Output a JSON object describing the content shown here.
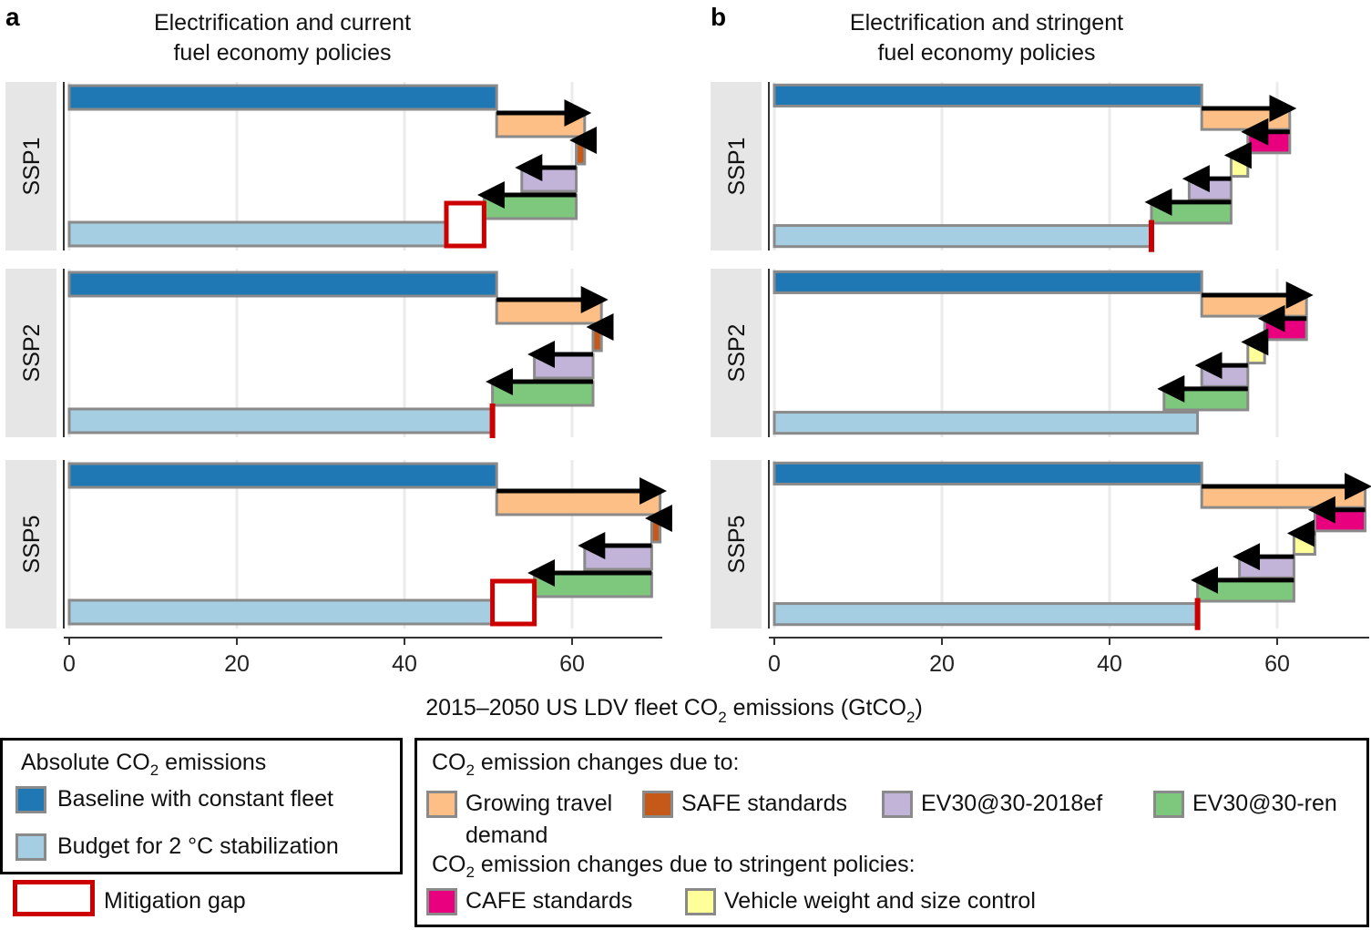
{
  "colors": {
    "baseline": "#1f77b4",
    "budget": "#a6cee3",
    "travel": "#fdbf86",
    "safe": "#c5591a",
    "ev2018": "#c2b3d9",
    "evren": "#7ec87e",
    "cafe": "#e8007f",
    "weight": "#ffff99",
    "gap": "#cc0000",
    "strip": "#e6e6e6",
    "border": "#8a8a8a"
  },
  "chart_data": [
    {
      "type": "bar",
      "panel": "a",
      "title_lines": [
        "Electrification and current",
        "fuel economy policies"
      ],
      "xlim": [
        0,
        70
      ],
      "x_ticks": [
        0,
        20,
        40,
        60
      ],
      "x_tick_labels": [
        "0",
        "20",
        "40",
        "60"
      ],
      "facets": [
        {
          "label": "SSP1",
          "baseline": 51,
          "steps": [
            {
              "key": "travel",
              "from": 51,
              "to": 61.5
            },
            {
              "key": "safe",
              "from": 61.5,
              "to": 60.5
            },
            {
              "key": "ev2018",
              "from": 60.5,
              "to": 54
            },
            {
              "key": "evren",
              "from": 60.5,
              "to": 49.5
            }
          ],
          "budget": 45,
          "gap": [
            45,
            49.5
          ]
        },
        {
          "label": "SSP2",
          "baseline": 51,
          "steps": [
            {
              "key": "travel",
              "from": 51,
              "to": 63.5
            },
            {
              "key": "safe",
              "from": 63.5,
              "to": 62.5
            },
            {
              "key": "ev2018",
              "from": 62.5,
              "to": 55.5
            },
            {
              "key": "evren",
              "from": 62.5,
              "to": 50.5
            }
          ],
          "budget": 50.5,
          "gap": [
            50.5,
            50.5
          ]
        },
        {
          "label": "SSP5",
          "baseline": 51,
          "steps": [
            {
              "key": "travel",
              "from": 51,
              "to": 70.5
            },
            {
              "key": "safe",
              "from": 70.5,
              "to": 69.5
            },
            {
              "key": "ev2018",
              "from": 69.5,
              "to": 61.5
            },
            {
              "key": "evren",
              "from": 69.5,
              "to": 55.5
            }
          ],
          "budget": 50.5,
          "gap": [
            50.5,
            55.5
          ]
        }
      ]
    },
    {
      "type": "bar",
      "panel": "b",
      "title_lines": [
        "Electrification and stringent",
        "fuel economy policies"
      ],
      "xlim": [
        0,
        70
      ],
      "x_ticks": [
        0,
        20,
        40,
        60
      ],
      "x_tick_labels": [
        "0",
        "20",
        "40",
        "60"
      ],
      "facets": [
        {
          "label": "SSP1",
          "baseline": 51,
          "steps": [
            {
              "key": "travel",
              "from": 51,
              "to": 61.5
            },
            {
              "key": "cafe",
              "from": 61.5,
              "to": 56.5
            },
            {
              "key": "weight",
              "from": 56.5,
              "to": 54.5
            },
            {
              "key": "ev2018",
              "from": 54.5,
              "to": 49.5
            },
            {
              "key": "evren",
              "from": 54.5,
              "to": 45
            }
          ],
          "budget": 45,
          "gap": [
            45,
            45
          ]
        },
        {
          "label": "SSP2",
          "baseline": 51,
          "steps": [
            {
              "key": "travel",
              "from": 51,
              "to": 63.5
            },
            {
              "key": "cafe",
              "from": 63.5,
              "to": 58.5
            },
            {
              "key": "weight",
              "from": 58.5,
              "to": 56.5
            },
            {
              "key": "ev2018",
              "from": 56.5,
              "to": 51
            },
            {
              "key": "evren",
              "from": 56.5,
              "to": 46.5
            }
          ],
          "budget": 50.5,
          "gap": null
        },
        {
          "label": "SSP5",
          "baseline": 51,
          "steps": [
            {
              "key": "travel",
              "from": 51,
              "to": 70.5
            },
            {
              "key": "cafe",
              "from": 70.5,
              "to": 64.5
            },
            {
              "key": "weight",
              "from": 64.5,
              "to": 62
            },
            {
              "key": "ev2018",
              "from": 62,
              "to": 55.5
            },
            {
              "key": "evren",
              "from": 62,
              "to": 50.5
            }
          ],
          "budget": 50.5,
          "gap": [
            50.5,
            50.5
          ]
        }
      ]
    }
  ],
  "xlabel": {
    "pre": "2015–2050 US LDV fleet CO",
    "sub1": "2",
    "mid": " emissions (GtCO",
    "sub2": "2",
    "post": ")"
  },
  "legend": {
    "abs_title": {
      "pre": "Absolute CO",
      "sub": "2",
      "post": " emissions"
    },
    "baseline": "Baseline with constant fleet",
    "budget": "Budget for 2 °C stabilization",
    "gap": "Mitigation gap",
    "changes_title": {
      "pre": "CO",
      "sub": "2",
      "post": " emission changes due to:"
    },
    "travel_line1": "Growing travel",
    "travel_line2": "demand",
    "safe": "SAFE standards",
    "ev2018": "EV30@30-2018ef",
    "evren": "EV30@30-ren",
    "stringent_title": {
      "pre": "CO",
      "sub": "2",
      "post": " emission changes due to stringent policies:"
    },
    "cafe": "CAFE standards",
    "weight": "Vehicle weight and size control"
  }
}
